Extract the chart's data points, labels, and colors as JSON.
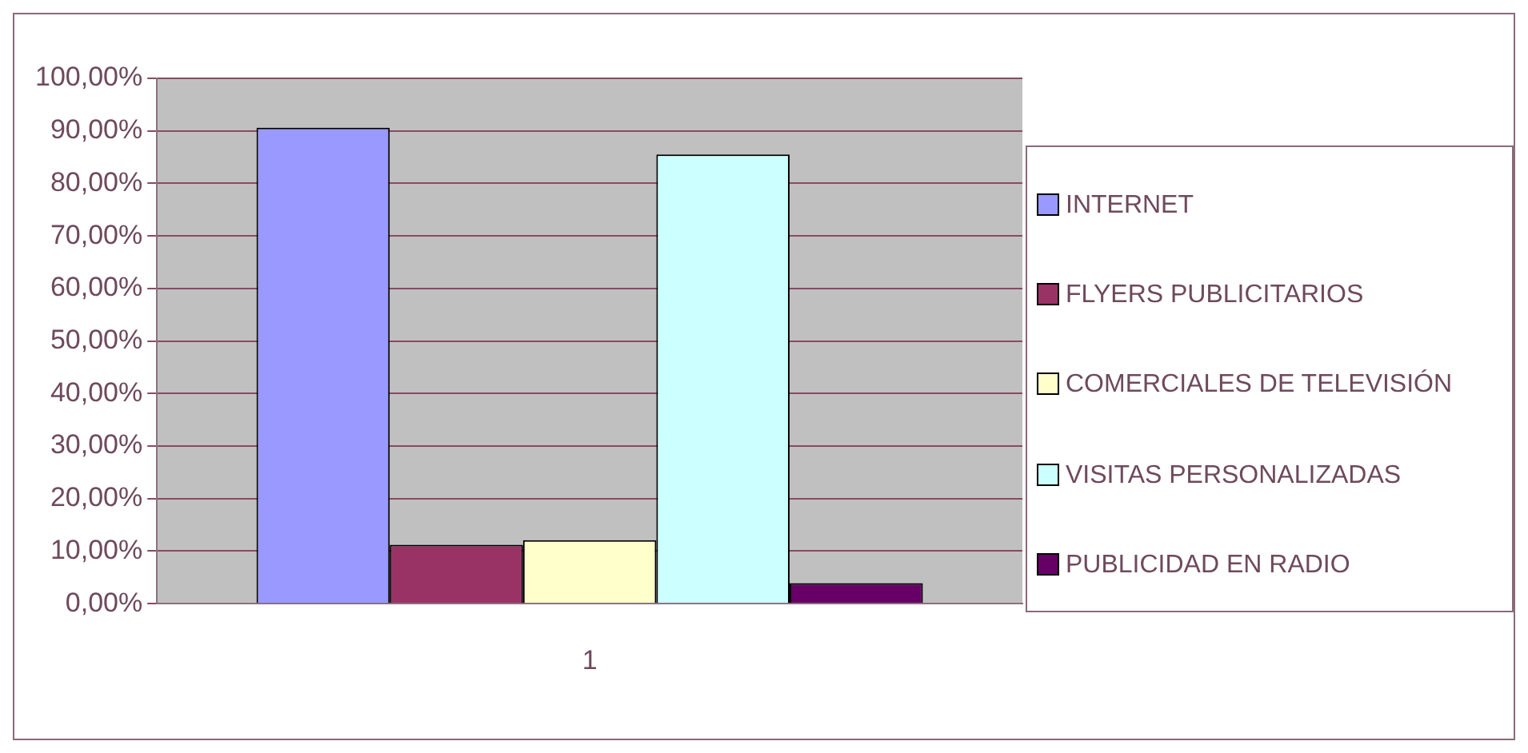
{
  "chart_data": {
    "type": "bar",
    "categories": [
      "1"
    ],
    "series": [
      {
        "name": "INTERNET",
        "color": "#9999ff",
        "values": [
          90.6
        ]
      },
      {
        "name": "FLYERS PUBLICITARIOS",
        "color": "#993366",
        "values": [
          11.2
        ]
      },
      {
        "name": "COMERCIALES DE TELEVISIÓN",
        "color": "#ffffcc",
        "values": [
          12.1
        ]
      },
      {
        "name": "VISITAS PERSONALIZADAS",
        "color": "#ccffff",
        "values": [
          85.5
        ]
      },
      {
        "name": "PUBLICIDAD EN RADIO",
        "color": "#660066",
        "values": [
          3.9
        ]
      }
    ],
    "ylim": [
      0,
      100
    ],
    "yticks": [
      {
        "value": 0,
        "label": "0,00%"
      },
      {
        "value": 10,
        "label": "10,00%"
      },
      {
        "value": 20,
        "label": "20,00%"
      },
      {
        "value": 30,
        "label": "30,00%"
      },
      {
        "value": 40,
        "label": "40,00%"
      },
      {
        "value": 50,
        "label": "50,00%"
      },
      {
        "value": 60,
        "label": "60,00%"
      },
      {
        "value": 70,
        "label": "70,00%"
      },
      {
        "value": 80,
        "label": "80,00%"
      },
      {
        "value": 90,
        "label": "90,00%"
      },
      {
        "value": 100,
        "label": "100,00%"
      }
    ],
    "grid": "y",
    "legend": "right"
  }
}
